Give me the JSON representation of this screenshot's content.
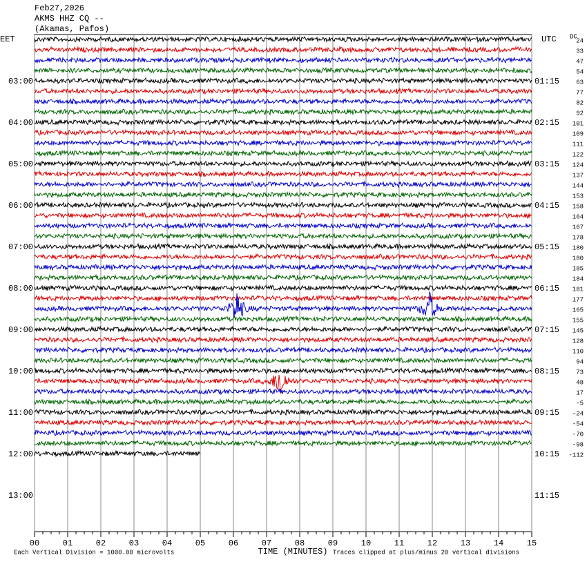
{
  "chart_data": {
    "type": "helicorder",
    "header": [
      "Feb27,2026",
      "AKMS HHZ CQ --",
      "(Akamas, Pafos)"
    ],
    "left_zone": "EET",
    "right_zone": "UTC",
    "dc_label": "DC",
    "row_labels_left": [
      null,
      null,
      null,
      null,
      "03:00",
      null,
      null,
      null,
      "04:00",
      null,
      null,
      null,
      "05:00",
      null,
      null,
      null,
      "06:00",
      null,
      null,
      null,
      "07:00",
      null,
      null,
      null,
      "08:00",
      null,
      null,
      null,
      "09:00",
      null,
      null,
      null,
      "10:00",
      null,
      null,
      null,
      "11:00",
      null,
      null,
      null,
      "12:00",
      null,
      null,
      null,
      "13:00"
    ],
    "row_labels_right": [
      null,
      null,
      null,
      null,
      "01:15",
      null,
      null,
      null,
      "02:15",
      null,
      null,
      null,
      "03:15",
      null,
      null,
      null,
      "04:15",
      null,
      null,
      null,
      "05:15",
      null,
      null,
      null,
      "06:15",
      null,
      null,
      null,
      "07:15",
      null,
      null,
      null,
      "08:15",
      null,
      null,
      null,
      "09:15",
      null,
      null,
      null,
      "10:15",
      null,
      null,
      null,
      "11:15"
    ],
    "dc_offsets": [
      24,
      33,
      47,
      54,
      63,
      77,
      82,
      92,
      101,
      109,
      111,
      122,
      124,
      137,
      144,
      153,
      158,
      164,
      167,
      178,
      180,
      180,
      185,
      184,
      181,
      177,
      165,
      155,
      145,
      128,
      110,
      94,
      73,
      48,
      17,
      -5,
      -24,
      -54,
      -70,
      -98,
      -112
    ],
    "trace_colors": [
      "#000000",
      "#dd0000",
      "#0000cc",
      "#006400"
    ],
    "xlim": [
      0,
      15
    ],
    "xticks": [
      {
        "value": 0,
        "label": "00"
      },
      {
        "value": 1,
        "label": "01"
      },
      {
        "value": 2,
        "label": "02"
      },
      {
        "value": 3,
        "label": "03"
      },
      {
        "value": 4,
        "label": "04"
      },
      {
        "value": 5,
        "label": "05"
      },
      {
        "value": 6,
        "label": "06"
      },
      {
        "value": 7,
        "label": "07"
      },
      {
        "value": 8,
        "label": "08"
      },
      {
        "value": 9,
        "label": "09"
      },
      {
        "value": 10,
        "label": "10"
      },
      {
        "value": 11,
        "label": "11"
      },
      {
        "value": 12,
        "label": "12"
      },
      {
        "value": 13,
        "label": "13"
      },
      {
        "value": 14,
        "label": "14"
      },
      15
    ],
    "xlabel": "TIME (MINUTES)",
    "footer_left": "Each Vertical Division = 1000.00 microvolts",
    "footer_right": "Traces clipped at plus/minus 20 vertical divisions",
    "grid": true
  }
}
